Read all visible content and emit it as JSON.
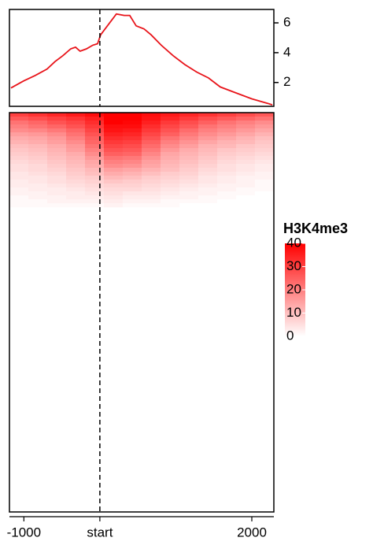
{
  "chart_data": [
    {
      "type": "line",
      "x": [
        -1170,
        -1005,
        -850,
        -695,
        -590,
        -487,
        -383,
        -320,
        -260,
        -176,
        -93,
        -30,
        10,
        114,
        218,
        321,
        394,
        477,
        580,
        674,
        808,
        964,
        1119,
        1275,
        1430,
        1585,
        1793,
        2000,
        2207,
        2270
      ],
      "series": [
        {
          "color": "#e8141a",
          "values": [
            1.63,
            2.1,
            2.47,
            2.9,
            3.4,
            3.8,
            4.26,
            4.37,
            4.1,
            4.26,
            4.5,
            4.6,
            5.2,
            5.9,
            6.6,
            6.5,
            6.5,
            5.8,
            5.6,
            5.2,
            4.5,
            3.8,
            3.2,
            2.7,
            2.3,
            1.7,
            1.3,
            0.9,
            0.6,
            0.5
          ]
        }
      ],
      "xlim": [
        -1190,
        2290
      ],
      "ylim": [
        0.4,
        6.9
      ],
      "yticks": [
        2,
        4,
        6
      ]
    },
    {
      "type": "heatmap",
      "xlim": [
        -1190,
        2290
      ],
      "xticks": [
        -1000,
        {
          "value": 0,
          "label": "start"
        },
        2000
      ],
      "colors": [
        "#ffffff",
        "#ff0000"
      ],
      "legend_title": "H3K4me3",
      "clim": [
        0,
        40
      ],
      "cticks": [
        0,
        10,
        20,
        30,
        40
      ],
      "matrix": [
        [
          30,
          32,
          34,
          36,
          38,
          40,
          40,
          38,
          36,
          34,
          32,
          30,
          28,
          26
        ],
        [
          26,
          28,
          30,
          32,
          35,
          40,
          40,
          37,
          34,
          31,
          28,
          26,
          24,
          22
        ],
        [
          22,
          24,
          27,
          29,
          33,
          40,
          39,
          35,
          31,
          28,
          25,
          22,
          20,
          18
        ],
        [
          20,
          22,
          24,
          27,
          31,
          38,
          38,
          33,
          29,
          26,
          22,
          20,
          18,
          16
        ],
        [
          18,
          19,
          21,
          24,
          29,
          37,
          36,
          31,
          27,
          23,
          20,
          18,
          16,
          14
        ],
        [
          15,
          16,
          18,
          22,
          27,
          35,
          34,
          29,
          25,
          21,
          18,
          16,
          14,
          12
        ],
        [
          13,
          14,
          16,
          20,
          25,
          33,
          32,
          27,
          22,
          19,
          16,
          14,
          12,
          10
        ],
        [
          12,
          13,
          15,
          18,
          24,
          31,
          30,
          25,
          20,
          17,
          14,
          12,
          11,
          9
        ],
        [
          10,
          11,
          13,
          16,
          22,
          29,
          28,
          23,
          18,
          15,
          12,
          11,
          9,
          8
        ],
        [
          9,
          10,
          12,
          15,
          20,
          27,
          26,
          21,
          16,
          13,
          11,
          9,
          8,
          7
        ],
        [
          8,
          9,
          11,
          13,
          18,
          25,
          24,
          19,
          14,
          12,
          10,
          8,
          7,
          6
        ],
        [
          7,
          8,
          10,
          12,
          16,
          22,
          21,
          17,
          13,
          11,
          9,
          7,
          6,
          5
        ],
        [
          6,
          7,
          9,
          11,
          14,
          20,
          19,
          15,
          12,
          10,
          8,
          6,
          5,
          4
        ],
        [
          5,
          6,
          8,
          10,
          13,
          18,
          17,
          14,
          11,
          9,
          7,
          5,
          4,
          3
        ],
        [
          5,
          6,
          7,
          9,
          11,
          15,
          14,
          12,
          10,
          8,
          6,
          5,
          4,
          3
        ],
        [
          4,
          5,
          6,
          8,
          10,
          13,
          12,
          10,
          8,
          7,
          5,
          4,
          3,
          2
        ],
        [
          4,
          4,
          5,
          7,
          8,
          11,
          10,
          8,
          7,
          6,
          4,
          3,
          2,
          2
        ],
        [
          3,
          4,
          5,
          6,
          7,
          9,
          8,
          7,
          6,
          5,
          4,
          3,
          2,
          1
        ],
        [
          3,
          3,
          4,
          5,
          6,
          7,
          7,
          6,
          5,
          4,
          3,
          2,
          2,
          1
        ],
        [
          2,
          3,
          3,
          4,
          5,
          6,
          6,
          5,
          4,
          3,
          2,
          2,
          1,
          1
        ],
        [
          2,
          2,
          3,
          3,
          4,
          5,
          4,
          4,
          3,
          2,
          2,
          1,
          1,
          0
        ],
        [
          1,
          2,
          2,
          3,
          3,
          4,
          3,
          3,
          2,
          2,
          1,
          1,
          0,
          0
        ],
        [
          1,
          1,
          2,
          2,
          2,
          3,
          2,
          2,
          1,
          1,
          1,
          0,
          0,
          0
        ],
        [
          1,
          1,
          1,
          1,
          1,
          2,
          1,
          1,
          1,
          0,
          0,
          0,
          0,
          0
        ]
      ]
    }
  ]
}
